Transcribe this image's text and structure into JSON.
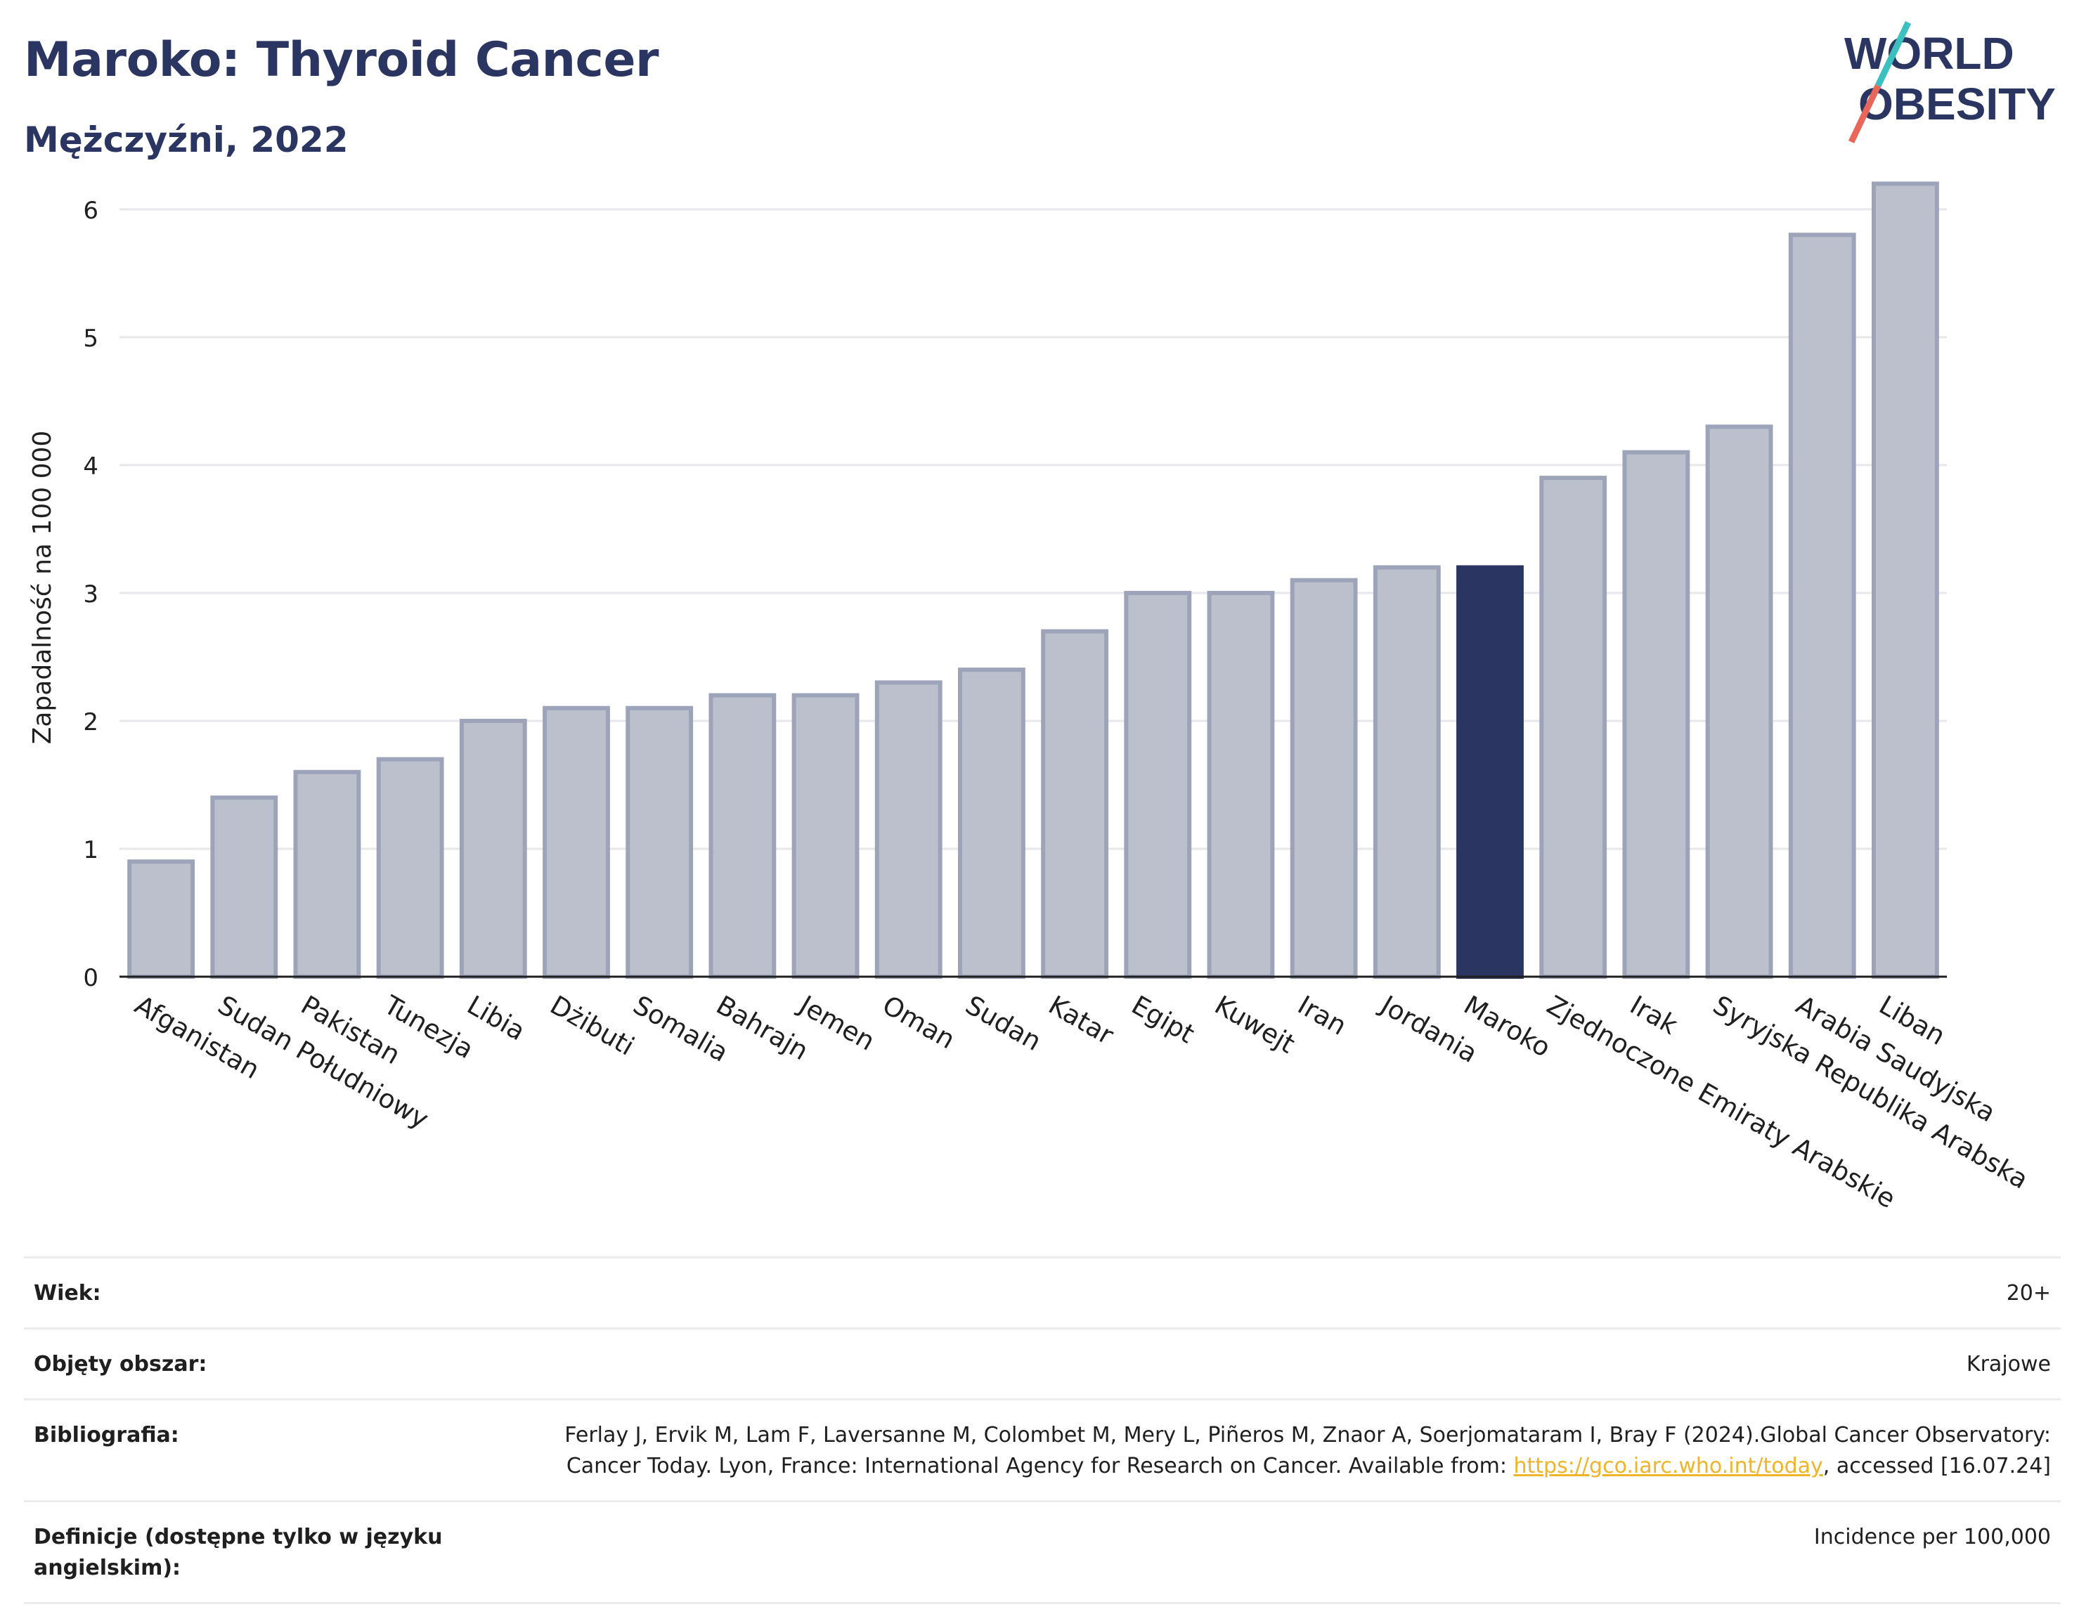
{
  "header": {
    "title": "Maroko: Thyroid Cancer",
    "subtitle": "Mężczyźni, 2022"
  },
  "logo": {
    "line1": "WORLD",
    "line2": "OBESITY"
  },
  "colors": {
    "bar": "#bcc0cd",
    "bar_stroke": "#9da3b9",
    "highlight": "#2b3561",
    "axis": "#1f1f1f",
    "grid": "#e7e7ec"
  },
  "chart_data": {
    "type": "bar",
    "ylabel": "Zapadalność na 100 000",
    "xlabel": "",
    "ylim": [
      0,
      6.4
    ],
    "yticks": [
      0,
      1,
      2,
      3,
      4,
      5,
      6
    ],
    "grid": true,
    "highlight": "Maroko",
    "categories": [
      "Afganistan",
      "Sudan Południowy",
      "Pakistan",
      "Tunezja",
      "Libia",
      "Dżibuti",
      "Somalia",
      "Bahrajn",
      "Jemen",
      "Oman",
      "Sudan",
      "Katar",
      "Egipt",
      "Kuwejt",
      "Iran",
      "Jordania",
      "Maroko",
      "Zjednoczone Emiraty Arabskie",
      "Irak",
      "Syryjska Republika Arabska",
      "Arabia Saudyjska",
      "Liban"
    ],
    "values": [
      0.9,
      1.4,
      1.6,
      1.7,
      2.0,
      2.1,
      2.1,
      2.2,
      2.2,
      2.3,
      2.4,
      2.7,
      3.0,
      3.0,
      3.1,
      3.2,
      3.2,
      3.9,
      4.1,
      4.3,
      5.8,
      6.2
    ]
  },
  "info": {
    "age_label": "Wiek:",
    "age_value": "20+",
    "coverage_label": "Objęty obszar:",
    "coverage_value": "Krajowe",
    "biblio_label": "Bibliografia:",
    "biblio_text1": "Ferlay J, Ervik M, Lam F, Laversanne M, Colombet M, Mery L, Piñeros M, Znaor A, Soerjomataram I, Bray F (2024).Global Cancer Observatory: Cancer Today. Lyon, France: International Agency for Research on Cancer. Available from: ",
    "biblio_link": "https://gco.iarc.who.int/today",
    "biblio_text2": ", accessed [16.07.24]",
    "def_label": "Definicje (dostępne tylko w języku angielskim):",
    "def_value": "Incidence per 100,000"
  }
}
